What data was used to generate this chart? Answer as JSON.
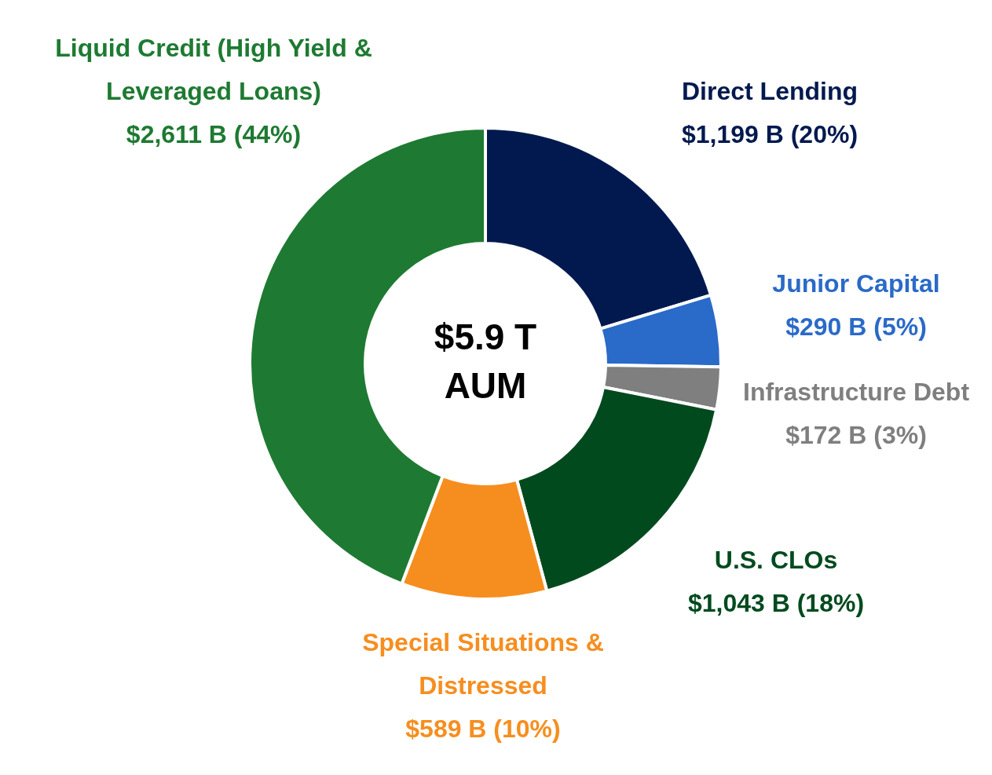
{
  "chart_data": {
    "type": "donut",
    "categories": [
      "Direct Lending",
      "Junior Capital",
      "Infrastructure Debt",
      "U.S. CLOs",
      "Special Situations & Distressed",
      "Liquid Credit (High Yield & Leveraged Loans)"
    ],
    "values": [
      1199,
      290,
      172,
      1043,
      589,
      2611
    ],
    "colors": [
      "#02194f",
      "#2a6ac8",
      "#7f7f7f",
      "#004a1e",
      "#f68e1f",
      "#1e7a32"
    ],
    "value_labels": [
      "$1,199 B (20%)",
      "$290 B (5%)",
      "$172 B (3%)",
      "$1,043 B (18%)",
      "$589 B (10%)",
      "$2,611 B (44%)"
    ],
    "annotations": [
      "$5.9 T AUM"
    ],
    "legend": false
  }
}
